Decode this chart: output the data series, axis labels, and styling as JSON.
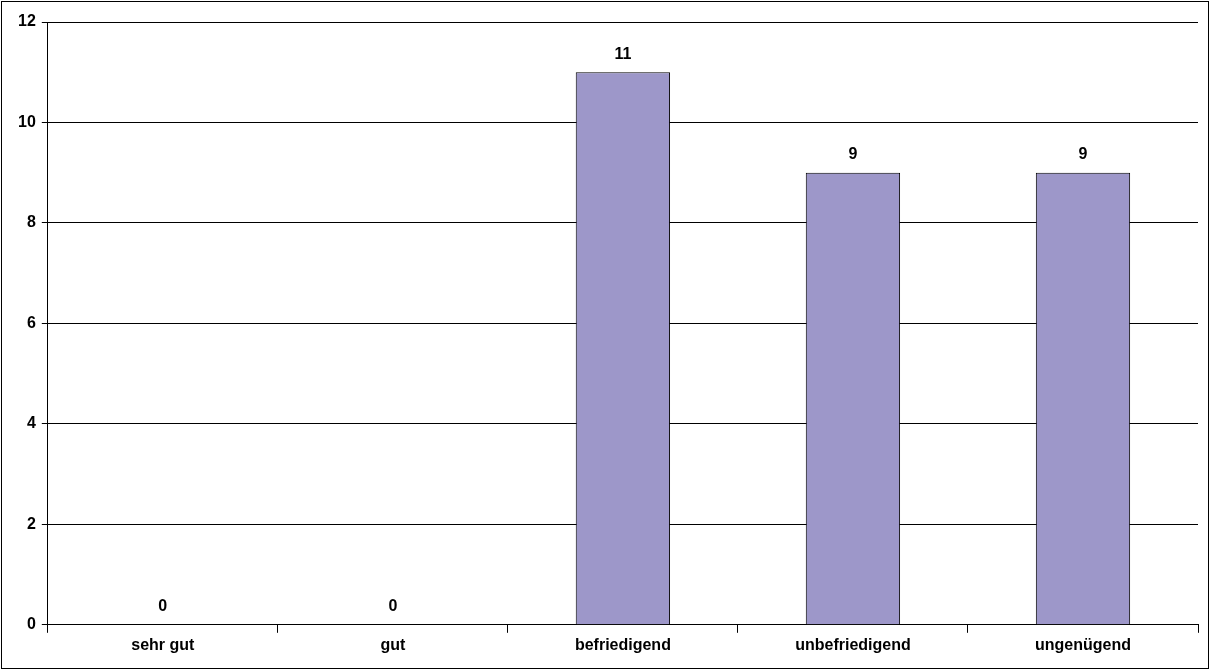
{
  "chart_data": {
    "type": "bar",
    "categories": [
      "sehr gut",
      "gut",
      "befriedigend",
      "unbefriedigend",
      "ungenügend"
    ],
    "values": [
      0,
      0,
      11,
      9,
      9
    ],
    "color": "#9d97c9",
    "ylim": [
      0,
      12
    ],
    "yticks": [
      0,
      2,
      4,
      6,
      8,
      10,
      12
    ],
    "grid": "y",
    "data_labels": true,
    "legend": false
  }
}
